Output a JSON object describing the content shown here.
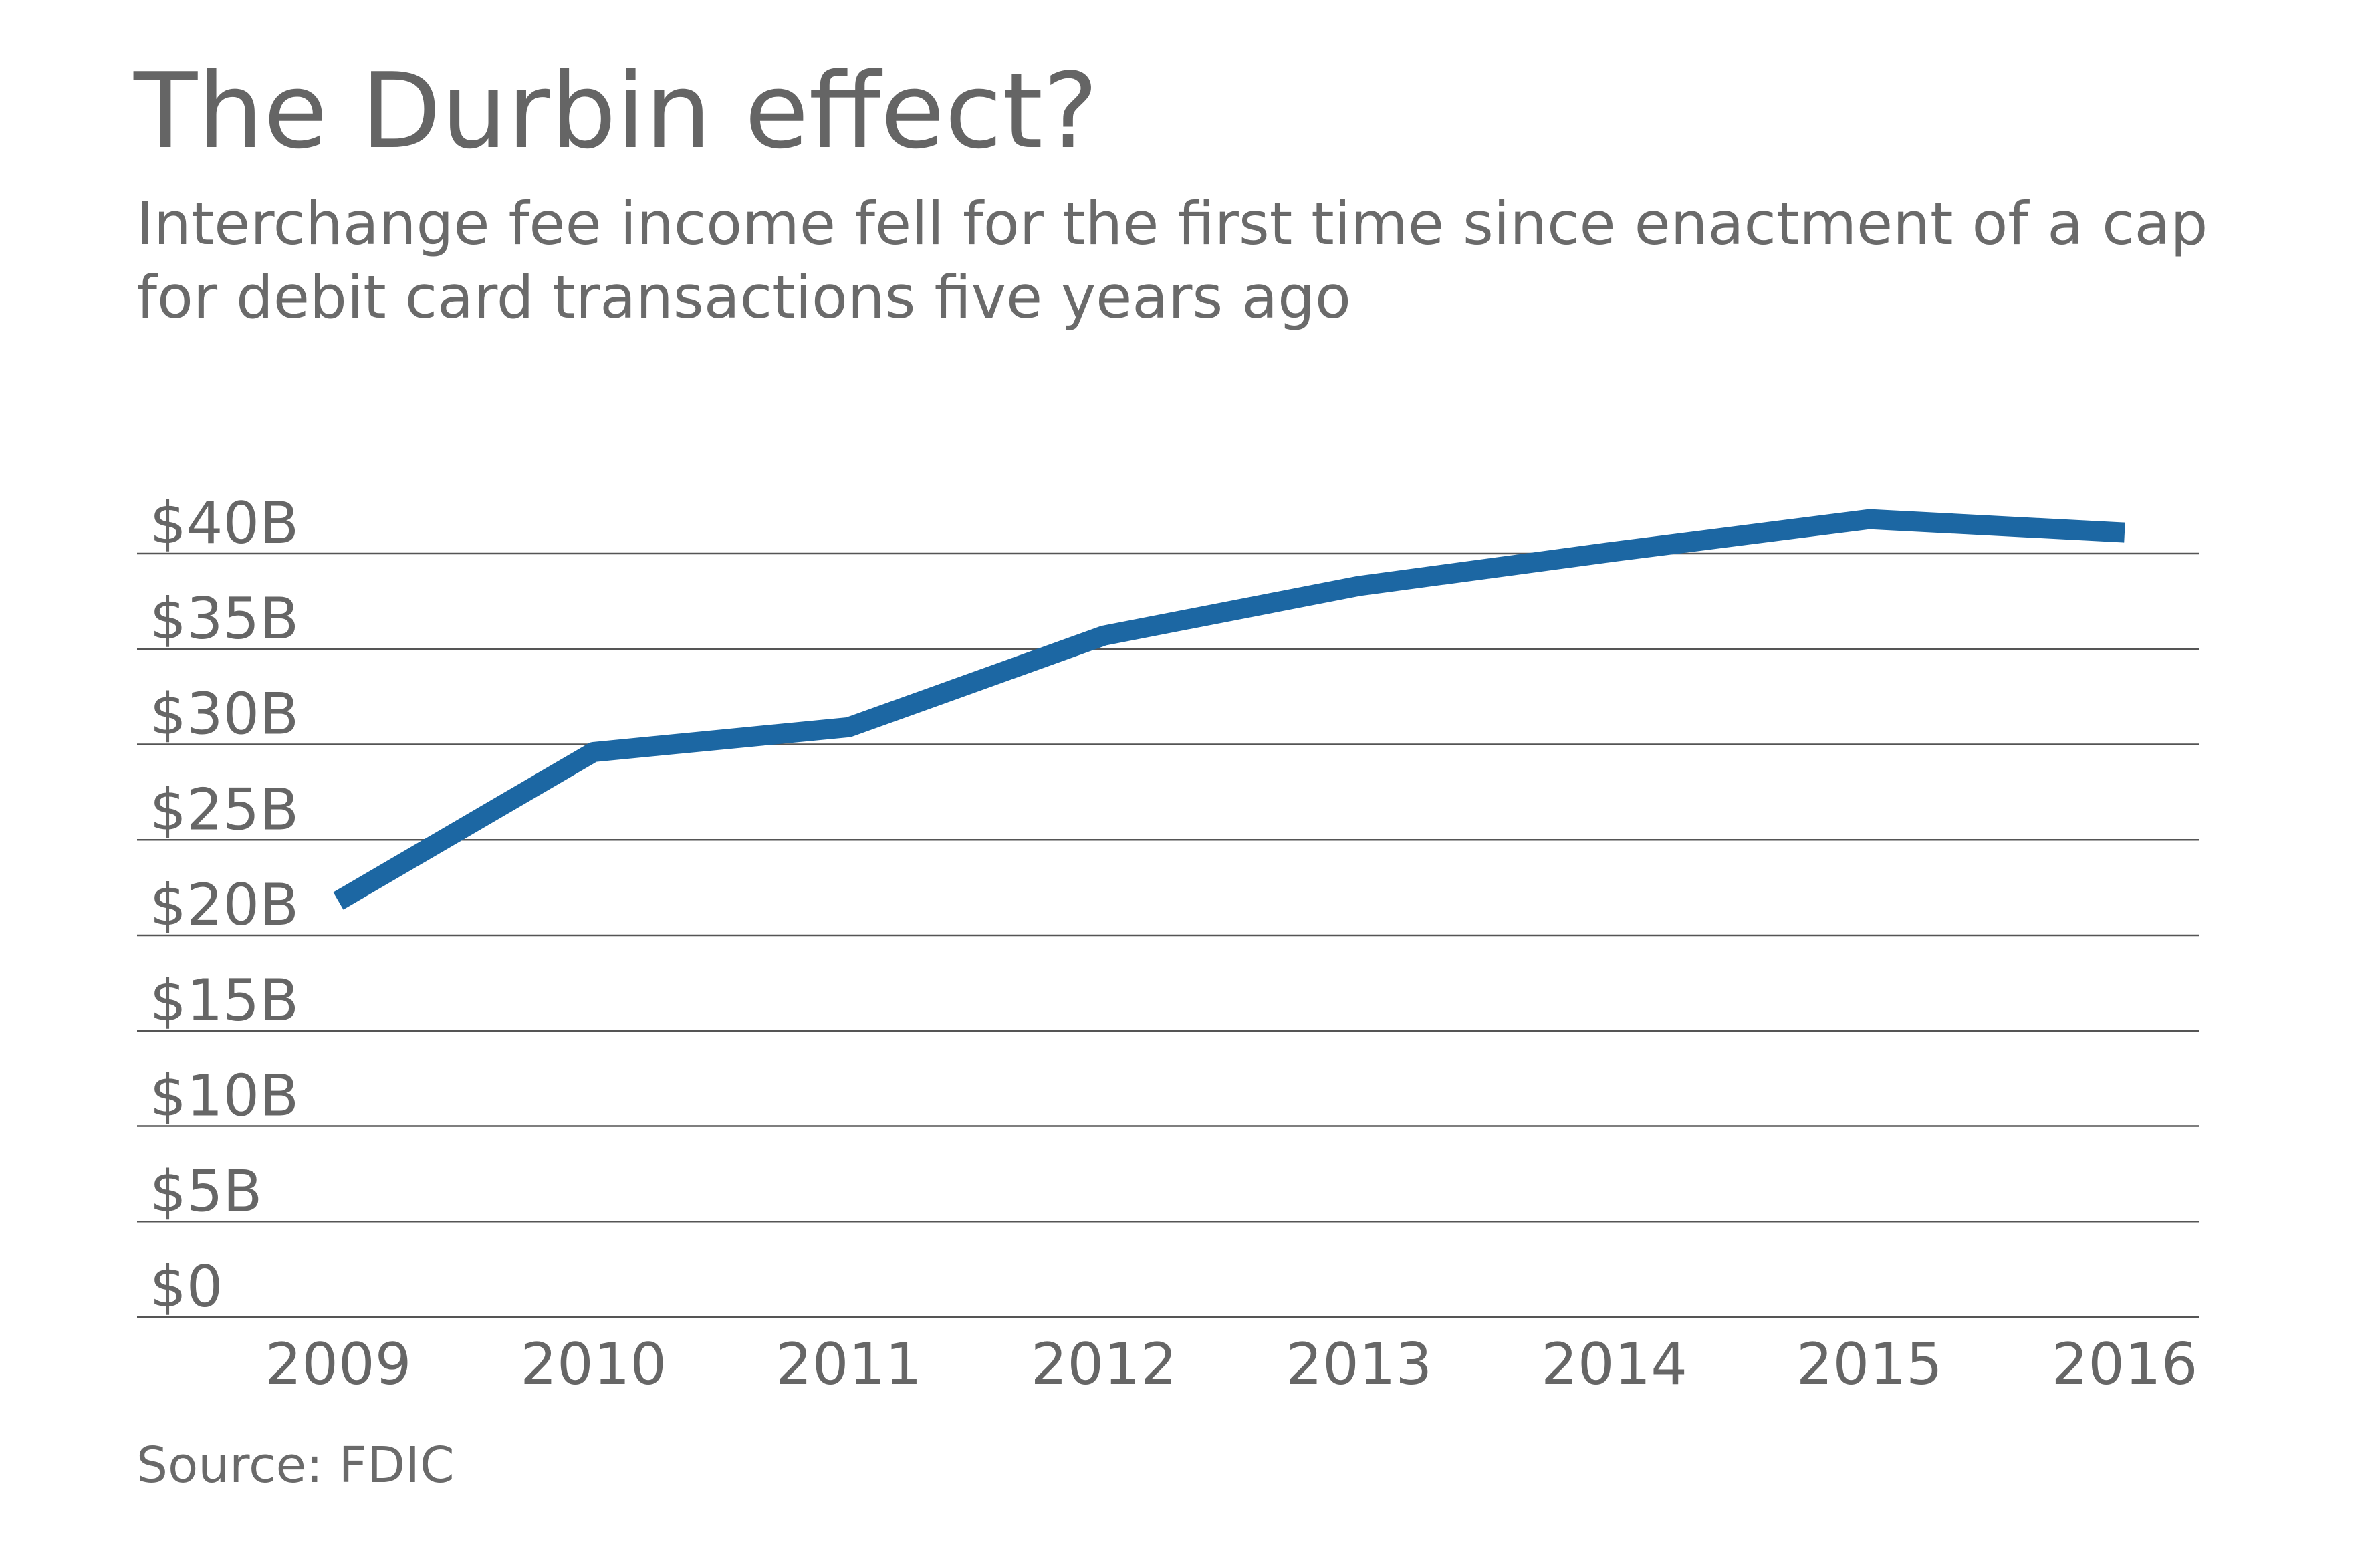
{
  "title": "The Durbin effect?",
  "subtitle": "Interchange fee income fell for the first time since enactment of a cap for debit card transactions five years ago",
  "source": "Source: FDIC",
  "colors": {
    "line": "#1c67a3",
    "grid": "#555555",
    "text": "#666666"
  },
  "chart_data": {
    "type": "line",
    "categories": [
      "2009",
      "2010",
      "2011",
      "2012",
      "2013",
      "2014",
      "2015",
      "2016"
    ],
    "values": [
      21.8,
      29.6,
      30.9,
      35.7,
      38.3,
      40.1,
      41.8,
      41.1
    ],
    "y_ticks": [
      0,
      5,
      10,
      15,
      20,
      25,
      30,
      35,
      40
    ],
    "y_tick_labels": [
      "$0",
      "$5B",
      "$10B",
      "$15B",
      "$20B",
      "$25B",
      "$30B",
      "$35B",
      "$40B"
    ],
    "ylim": [
      0,
      40
    ],
    "grid": true,
    "legend": false
  }
}
